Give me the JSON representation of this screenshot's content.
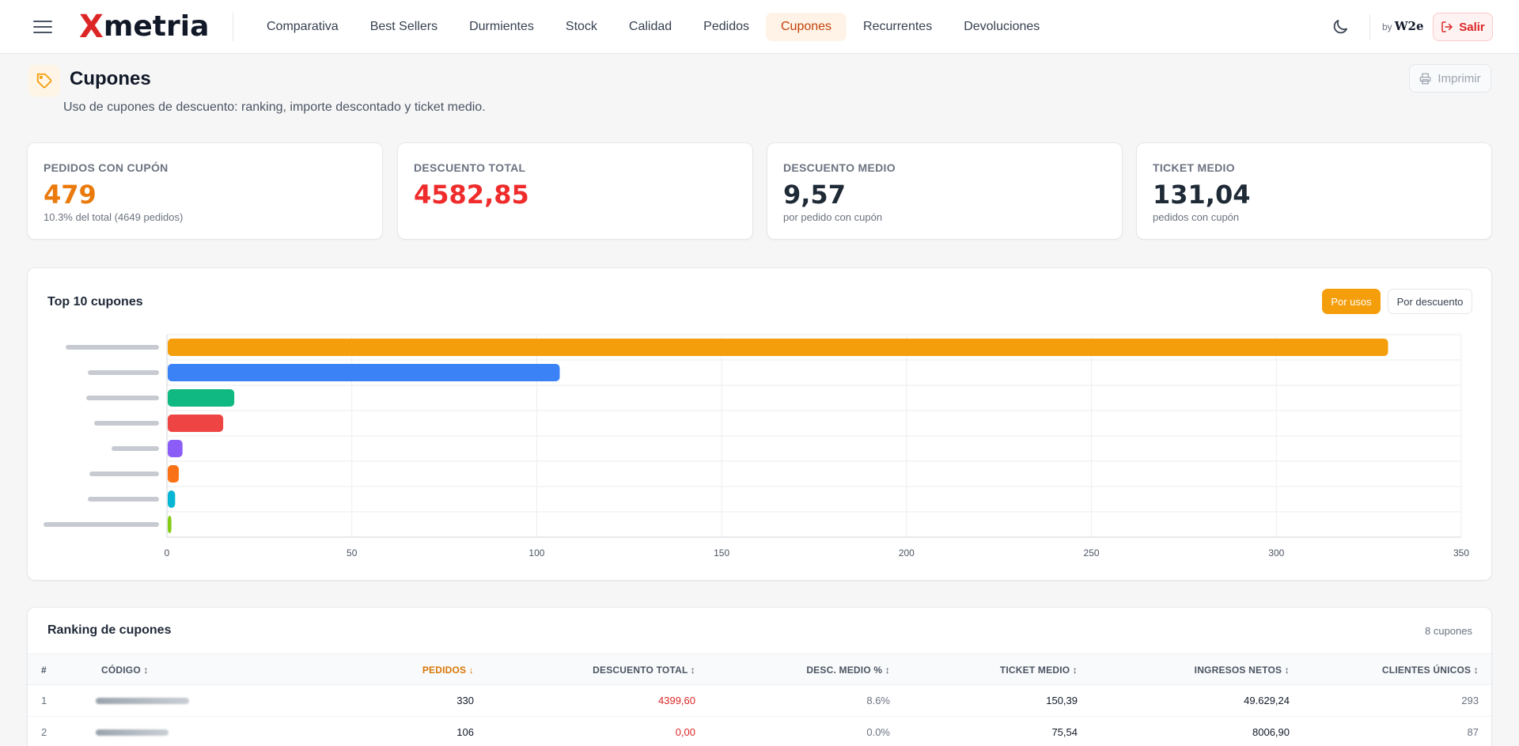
{
  "header": {
    "brand_x": "X",
    "brand_name": "metria",
    "nav": [
      "Comparativa",
      "Best Sellers",
      "Durmientes",
      "Stock",
      "Calidad",
      "Pedidos",
      "Cupones",
      "Recurrentes",
      "Devoluciones"
    ],
    "active_nav": "Cupones",
    "by_label": "by",
    "by_brand": "W2e",
    "logout_label": "Salir"
  },
  "page": {
    "title": "Cupones",
    "subtitle": "Uso de cupones de descuento: ranking, importe descontado y ticket medio.",
    "print_label": "Imprimir"
  },
  "kpis": [
    {
      "label": "PEDIDOS CON CUPÓN",
      "value": "479",
      "note": "10.3% del total (4649 pedidos)",
      "color": "#ea7a0c"
    },
    {
      "label": "DESCUENTO TOTAL",
      "value": "4582,85",
      "note": "",
      "color": "#ef2b2b"
    },
    {
      "label": "DESCUENTO MEDIO",
      "value": "9,57",
      "note": "por pedido con cupón",
      "color": "#1f2a37"
    },
    {
      "label": "TICKET MEDIO",
      "value": "131,04",
      "note": "pedidos con cupón",
      "color": "#1f2a37"
    }
  ],
  "chart": {
    "title": "Top 10 cupones",
    "toggle": {
      "active": "Por usos",
      "inactive": "Por descuento"
    }
  },
  "chart_data": {
    "type": "bar",
    "orientation": "horizontal",
    "title": "Top 10 cupones",
    "categories_redacted": true,
    "values": [
      330,
      106,
      18,
      15,
      4,
      3,
      2,
      1
    ],
    "colors": [
      "#f59e0b",
      "#3b82f6",
      "#10b981",
      "#ef4444",
      "#8b5cf6",
      "#f97316",
      "#06b6d4",
      "#84cc16"
    ],
    "xlim": [
      0,
      350
    ],
    "xticks": [
      "0",
      "50",
      "100",
      "150",
      "200",
      "250",
      "300",
      "350"
    ],
    "grid": true
  },
  "table": {
    "title": "Ranking de cupones",
    "count": "8 cupones",
    "columns": [
      "#",
      "CÓDIGO ↕",
      "PEDIDOS ↓",
      "DESCUENTO TOTAL ↕",
      "DESC. MEDIO % ↕",
      "TICKET MEDIO ↕",
      "INGRESOS NETOS ↕",
      "CLIENTES ÚNICOS ↕"
    ],
    "rows": [
      {
        "rank": "1",
        "pedidos": "330",
        "descuento": "4399,60",
        "desc_pct": "8.6%",
        "ticket": "150,39",
        "ingresos": "49.629,24",
        "clientes": "293"
      },
      {
        "rank": "2",
        "pedidos": "106",
        "descuento": "0,00",
        "desc_pct": "0.0%",
        "ticket": "75,54",
        "ingresos": "8006,90",
        "clientes": "87"
      }
    ]
  }
}
